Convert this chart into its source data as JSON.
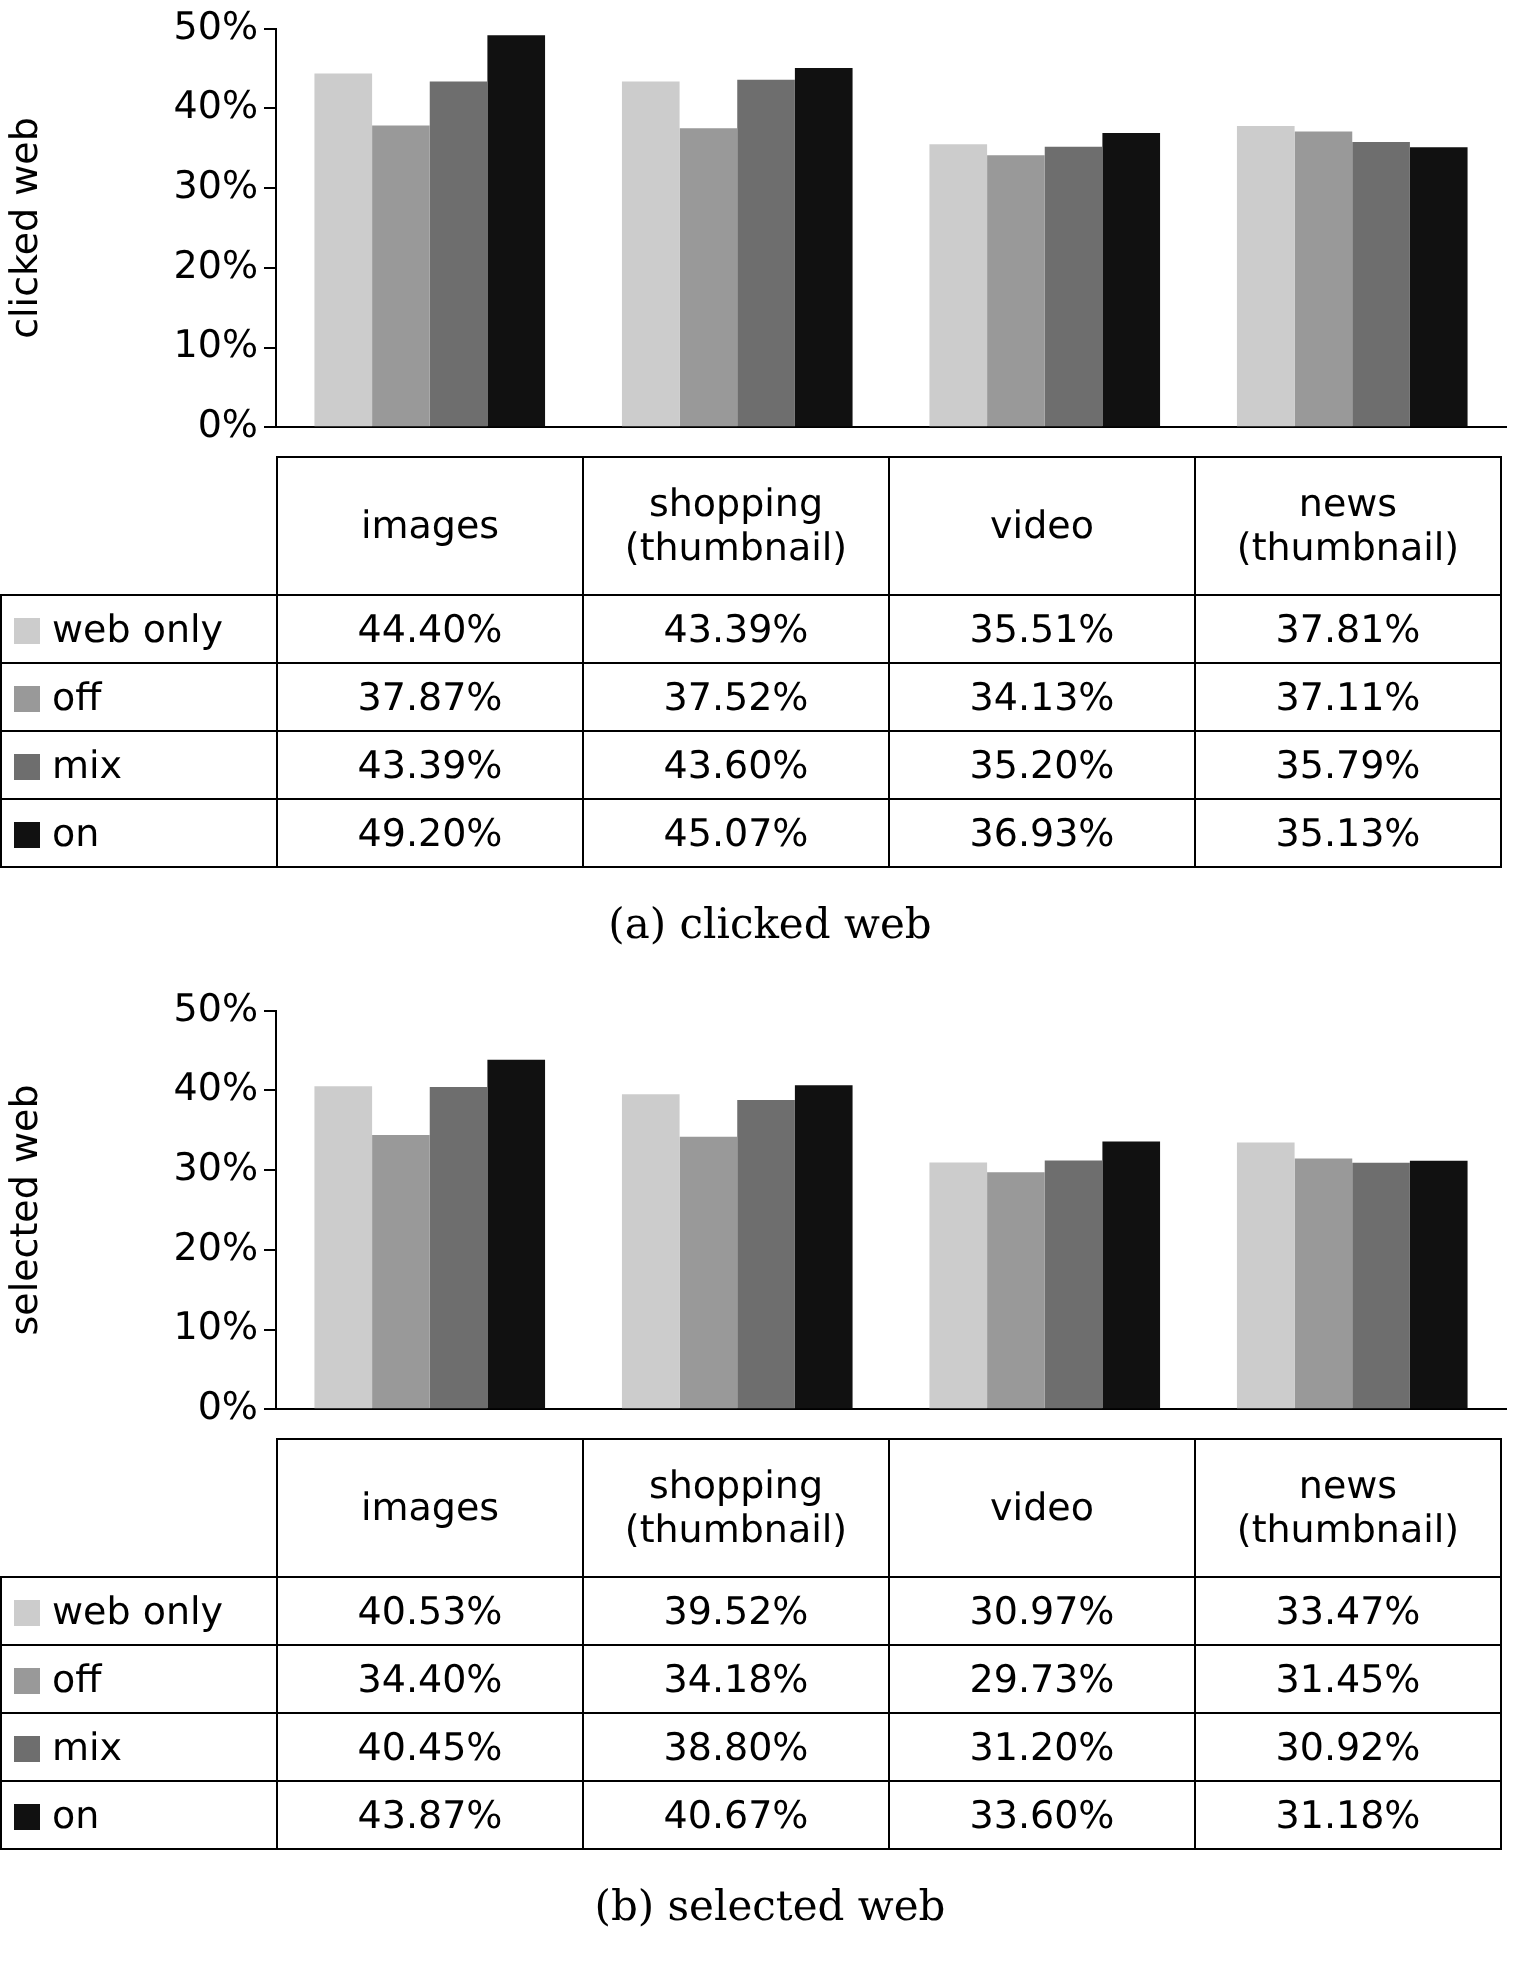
{
  "chart_data": [
    {
      "type": "bar",
      "title": "(a) clicked web",
      "ylabel": "clicked web",
      "categories": [
        "images",
        "shopping\n(thumbnail)",
        "video",
        "news\n(thumbnail)"
      ],
      "series": [
        {
          "name": "web only",
          "color": "#cccccc",
          "values": [
            44.4,
            43.39,
            35.51,
            37.81
          ],
          "value_labels": [
            "44.40%",
            "43.39%",
            "35.51%",
            "37.81%"
          ]
        },
        {
          "name": "off",
          "color": "#999999",
          "values": [
            37.87,
            37.52,
            34.13,
            37.11
          ],
          "value_labels": [
            "37.87%",
            "37.52%",
            "34.13%",
            "37.11%"
          ]
        },
        {
          "name": "mix",
          "color": "#6e6e6e",
          "values": [
            43.39,
            43.6,
            35.2,
            35.79
          ],
          "value_labels": [
            "43.39%",
            "43.60%",
            "35.20%",
            "35.79%"
          ]
        },
        {
          "name": "on",
          "color": "#111111",
          "values": [
            49.2,
            45.07,
            36.93,
            35.13
          ],
          "value_labels": [
            "49.20%",
            "45.07%",
            "36.93%",
            "35.13%"
          ]
        }
      ],
      "ylim": [
        0,
        50
      ],
      "yticks": [
        {
          "value": 0,
          "label": "0%"
        },
        {
          "value": 10,
          "label": "10%"
        },
        {
          "value": 20,
          "label": "20%"
        },
        {
          "value": 30,
          "label": "30%"
        },
        {
          "value": 40,
          "label": "40%"
        },
        {
          "value": 50,
          "label": "50%"
        }
      ],
      "legend": "bottom"
    },
    {
      "type": "bar",
      "title": "(b) selected web",
      "ylabel": "selected web",
      "categories": [
        "images",
        "shopping\n(thumbnail)",
        "video",
        "news\n(thumbnail)"
      ],
      "series": [
        {
          "name": "web only",
          "color": "#cccccc",
          "values": [
            40.53,
            39.52,
            30.97,
            33.47
          ],
          "value_labels": [
            "40.53%",
            "39.52%",
            "30.97%",
            "33.47%"
          ]
        },
        {
          "name": "off",
          "color": "#999999",
          "values": [
            34.4,
            34.18,
            29.73,
            31.45
          ],
          "value_labels": [
            "34.40%",
            "34.18%",
            "29.73%",
            "31.45%"
          ]
        },
        {
          "name": "mix",
          "color": "#6e6e6e",
          "values": [
            40.45,
            38.8,
            31.2,
            30.92
          ],
          "value_labels": [
            "40.45%",
            "38.80%",
            "31.20%",
            "30.92%"
          ]
        },
        {
          "name": "on",
          "color": "#111111",
          "values": [
            43.87,
            40.67,
            33.6,
            31.18
          ],
          "value_labels": [
            "43.87%",
            "40.67%",
            "33.60%",
            "31.18%"
          ]
        }
      ],
      "ylim": [
        0,
        50
      ],
      "yticks": [
        {
          "value": 0,
          "label": "0%"
        },
        {
          "value": 10,
          "label": "10%"
        },
        {
          "value": 20,
          "label": "20%"
        },
        {
          "value": 30,
          "label": "30%"
        },
        {
          "value": 40,
          "label": "40%"
        },
        {
          "value": 50,
          "label": "50%"
        }
      ],
      "legend": "bottom"
    }
  ]
}
